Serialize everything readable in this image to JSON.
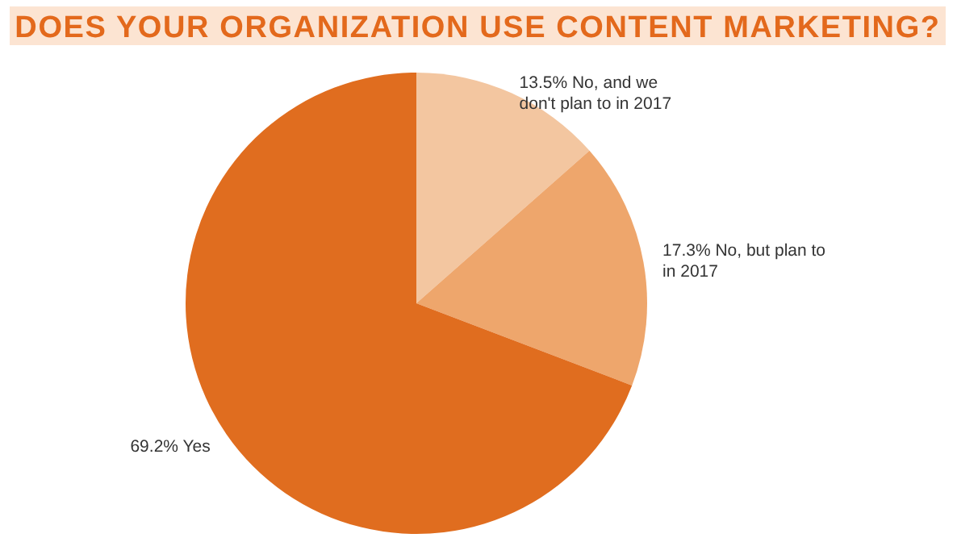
{
  "chart_data": {
    "type": "pie",
    "title": "DOES YOUR ORGANIZATION USE CONTENT MARKETING?",
    "categories": [
      "No, and we don't plan to in 2017",
      "No, but plan to in 2017",
      "Yes"
    ],
    "values": [
      13.5,
      17.3,
      69.2
    ],
    "value_labels": [
      "13.5%",
      "17.3%",
      "69.2%"
    ],
    "colors": [
      "#f3c6a0",
      "#eea66c",
      "#e06d1f"
    ]
  }
}
